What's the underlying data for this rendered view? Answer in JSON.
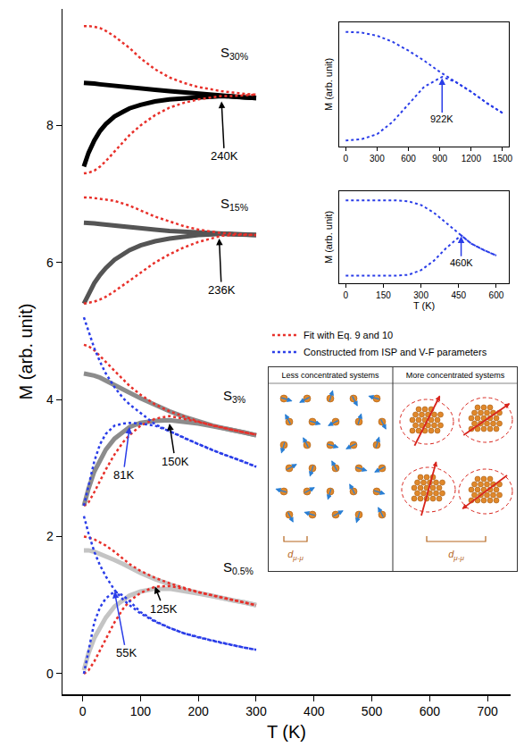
{
  "chart_data": [
    {
      "type": "line",
      "x_label": "T (K)",
      "y_label": "M (arb. unit)",
      "xlim": [
        -35,
        740
      ],
      "xticks": [
        0,
        100,
        200,
        300,
        400,
        500,
        600,
        700
      ],
      "ylim": [
        -0.3,
        9.7
      ],
      "yticks": [
        0,
        2,
        4,
        6,
        8
      ],
      "grid": false,
      "legend": "right",
      "x": [
        2,
        10,
        20,
        30,
        40,
        55,
        70,
        81,
        100,
        125,
        150,
        175,
        200,
        225,
        240,
        260,
        280,
        300
      ],
      "series": [
        {
          "color": "#000000",
          "line_style": "solid",
          "values": [
            8.62,
            8.62,
            8.61,
            8.6,
            8.59,
            8.58,
            8.57,
            8.56,
            8.54,
            8.52,
            8.5,
            8.48,
            8.46,
            8.44,
            8.43,
            8.42,
            8.41,
            8.4
          ]
        },
        {
          "color": "#000000",
          "line_style": "solid",
          "values": [
            7.4,
            7.6,
            7.78,
            7.92,
            8.02,
            8.13,
            8.2,
            8.25,
            8.3,
            8.35,
            8.38,
            8.4,
            8.41,
            8.42,
            8.43,
            8.42,
            8.41,
            8.4
          ]
        },
        {
          "color": "#555555",
          "line_style": "solid",
          "values": [
            6.58,
            6.58,
            6.57,
            6.56,
            6.55,
            6.54,
            6.53,
            6.52,
            6.5,
            6.48,
            6.46,
            6.45,
            6.44,
            6.43,
            6.42,
            6.41,
            6.41,
            6.4
          ]
        },
        {
          "color": "#555555",
          "line_style": "solid",
          "values": [
            5.4,
            5.55,
            5.7,
            5.82,
            5.92,
            6.04,
            6.13,
            6.18,
            6.25,
            6.31,
            6.35,
            6.38,
            6.4,
            6.41,
            6.42,
            6.41,
            6.41,
            6.4
          ]
        },
        {
          "color": "#8c8c8c",
          "line_style": "solid",
          "values": [
            4.38,
            4.37,
            4.35,
            4.32,
            4.28,
            4.22,
            4.16,
            4.1,
            4.02,
            3.92,
            3.83,
            3.75,
            3.68,
            3.62,
            3.59,
            3.55,
            3.52,
            3.48
          ]
        },
        {
          "color": "#8c8c8c",
          "line_style": "solid",
          "values": [
            2.45,
            2.7,
            2.95,
            3.12,
            3.27,
            3.43,
            3.53,
            3.6,
            3.66,
            3.69,
            3.7,
            3.68,
            3.65,
            3.61,
            3.59,
            3.55,
            3.52,
            3.48
          ]
        },
        {
          "color": "#c4c4c4",
          "line_style": "solid",
          "values": [
            1.8,
            1.8,
            1.78,
            1.75,
            1.72,
            1.66,
            1.6,
            1.55,
            1.47,
            1.38,
            1.3,
            1.23,
            1.18,
            1.13,
            1.1,
            1.07,
            1.04,
            1.0
          ]
        },
        {
          "color": "#c4c4c4",
          "line_style": "solid",
          "values": [
            0.05,
            0.3,
            0.52,
            0.68,
            0.82,
            0.98,
            1.08,
            1.14,
            1.2,
            1.24,
            1.24,
            1.21,
            1.17,
            1.13,
            1.1,
            1.07,
            1.04,
            1.0
          ]
        },
        {
          "name": "Fit with Eq. 9 and 10",
          "color": "#e8302a",
          "line_style": "dot",
          "values": [
            9.45,
            9.45,
            9.44,
            9.42,
            9.38,
            9.3,
            9.2,
            9.13,
            8.98,
            8.82,
            8.7,
            8.62,
            8.56,
            8.52,
            8.5,
            8.48,
            8.46,
            8.45
          ]
        },
        {
          "color": "#e8302a",
          "line_style": "dot",
          "values": [
            7.3,
            7.31,
            7.34,
            7.4,
            7.48,
            7.62,
            7.76,
            7.86,
            8.0,
            8.15,
            8.26,
            8.33,
            8.38,
            8.41,
            8.43,
            8.43,
            8.44,
            8.45
          ]
        },
        {
          "color": "#e8302a",
          "line_style": "dot",
          "values": [
            6.95,
            6.95,
            6.94,
            6.93,
            6.92,
            6.9,
            6.86,
            6.83,
            6.76,
            6.67,
            6.6,
            6.53,
            6.48,
            6.45,
            6.43,
            6.42,
            6.41,
            6.4
          ]
        },
        {
          "color": "#e8302a",
          "line_style": "dot",
          "values": [
            5.4,
            5.41,
            5.43,
            5.46,
            5.5,
            5.58,
            5.67,
            5.74,
            5.86,
            6.0,
            6.12,
            6.22,
            6.3,
            6.36,
            6.39,
            6.4,
            6.4,
            6.4
          ]
        },
        {
          "color": "#e8302a",
          "line_style": "dot",
          "values": [
            4.8,
            4.78,
            4.72,
            4.64,
            4.55,
            4.42,
            4.3,
            4.2,
            4.07,
            3.93,
            3.83,
            3.75,
            3.68,
            3.62,
            3.59,
            3.55,
            3.52,
            3.49
          ]
        },
        {
          "color": "#e8302a",
          "line_style": "dot",
          "values": [
            2.45,
            2.5,
            2.65,
            2.82,
            2.98,
            3.2,
            3.38,
            3.48,
            3.62,
            3.72,
            3.76,
            3.72,
            3.67,
            3.62,
            3.59,
            3.55,
            3.52,
            3.49
          ]
        },
        {
          "color": "#e8302a",
          "line_style": "dot",
          "values": [
            2.0,
            1.99,
            1.96,
            1.92,
            1.87,
            1.78,
            1.68,
            1.6,
            1.5,
            1.4,
            1.32,
            1.25,
            1.19,
            1.14,
            1.11,
            1.07,
            1.04,
            1.0
          ]
        },
        {
          "color": "#e8302a",
          "line_style": "dot",
          "values": [
            0.0,
            0.05,
            0.18,
            0.34,
            0.5,
            0.75,
            0.95,
            1.06,
            1.18,
            1.27,
            1.28,
            1.24,
            1.19,
            1.14,
            1.11,
            1.07,
            1.04,
            1.0
          ]
        },
        {
          "name": "Constructed from ISP and V-F parameters",
          "color": "#2a3de8",
          "line_style": "dot",
          "values": [
            5.2,
            5.0,
            4.75,
            4.55,
            4.38,
            4.18,
            4.02,
            3.93,
            3.8,
            3.64,
            3.54,
            3.44,
            3.35,
            3.26,
            3.21,
            3.15,
            3.09,
            3.02
          ]
        },
        {
          "color": "#2a3de8",
          "line_style": "dot",
          "values": [
            2.45,
            2.75,
            3.1,
            3.35,
            3.5,
            3.62,
            3.65,
            3.66,
            3.65,
            3.62,
            3.54,
            3.44,
            3.35,
            3.26,
            3.21,
            3.15,
            3.09,
            3.02
          ]
        },
        {
          "color": "#2a3de8",
          "line_style": "dot",
          "values": [
            2.3,
            2.05,
            1.78,
            1.58,
            1.42,
            1.22,
            1.08,
            1.0,
            0.88,
            0.76,
            0.67,
            0.59,
            0.53,
            0.48,
            0.45,
            0.42,
            0.38,
            0.35
          ]
        },
        {
          "color": "#2a3de8",
          "line_style": "dot",
          "values": [
            0.0,
            0.35,
            0.75,
            0.97,
            1.1,
            1.2,
            1.14,
            1.06,
            0.9,
            0.77,
            0.67,
            0.59,
            0.53,
            0.48,
            0.45,
            0.42,
            0.38,
            0.35
          ]
        }
      ],
      "labels": [
        {
          "text": "S30%",
          "x": 235,
          "y": 9.05
        },
        {
          "text": "S15%",
          "x": 235,
          "y": 6.85
        },
        {
          "text": "S3%",
          "x": 240,
          "y": 4.05
        },
        {
          "text": "S0.5%",
          "x": 240,
          "y": 1.55
        }
      ],
      "annotations": [
        {
          "text": "240K",
          "x": 240,
          "y": 8.35,
          "text_x": 245,
          "text_y": 7.55,
          "color": "#000000"
        },
        {
          "text": "236K",
          "x": 236,
          "y": 6.35,
          "text_x": 240,
          "text_y": 5.6,
          "color": "#000000"
        },
        {
          "text": "150K",
          "x": 150,
          "y": 3.65,
          "text_x": 160,
          "text_y": 3.1,
          "color": "#000000"
        },
        {
          "text": "81K",
          "x": 81,
          "y": 3.6,
          "text_x": 70,
          "text_y": 2.9,
          "color": "#2a3de8"
        },
        {
          "text": "125K",
          "x": 125,
          "y": 1.27,
          "text_x": 140,
          "text_y": 0.95,
          "color": "#000000"
        },
        {
          "text": "55K",
          "x": 55,
          "y": 1.2,
          "text_x": 75,
          "text_y": 0.3,
          "color": "#2a3de8"
        }
      ]
    },
    {
      "type": "line",
      "y_label": "M (arb. unit)",
      "xlim": [
        -60,
        1560
      ],
      "xticks": [
        0,
        300,
        600,
        900,
        1200,
        1500
      ],
      "ylim": [
        0,
        1
      ],
      "tick_labels": "x",
      "series": [
        {
          "color": "#2a3de8",
          "line_style": "dot",
          "x": [
            0,
            150,
            300,
            450,
            600,
            750,
            900,
            1050,
            1200,
            1350,
            1500
          ],
          "values": [
            0.92,
            0.915,
            0.89,
            0.84,
            0.77,
            0.69,
            0.6,
            0.52,
            0.44,
            0.35,
            0.27
          ]
        },
        {
          "color": "#2a3de8",
          "line_style": "dot",
          "x": [
            0,
            150,
            300,
            450,
            600,
            750,
            922,
            1050,
            1200,
            1350,
            1500
          ],
          "values": [
            0.05,
            0.06,
            0.1,
            0.2,
            0.34,
            0.48,
            0.56,
            0.52,
            0.44,
            0.35,
            0.27
          ]
        }
      ],
      "annotations": [
        {
          "text": "922K",
          "x": 922,
          "y": 0.55,
          "text_x": 922,
          "text_y": 0.22,
          "color": "#2a3de8"
        }
      ]
    },
    {
      "type": "line",
      "x_label": "T (K)",
      "y_label": "M (arb. unit)",
      "xlim": [
        -25,
        650
      ],
      "xticks": [
        0,
        150,
        300,
        450,
        600
      ],
      "ylim": [
        0,
        1
      ],
      "tick_labels": "x",
      "series": [
        {
          "color": "#2a3de8",
          "line_style": "dot",
          "x": [
            0,
            50,
            100,
            150,
            200,
            250,
            300,
            350,
            400,
            460,
            500,
            550,
            600
          ],
          "values": [
            0.9,
            0.9,
            0.9,
            0.9,
            0.9,
            0.89,
            0.85,
            0.77,
            0.66,
            0.52,
            0.43,
            0.36,
            0.3
          ]
        },
        {
          "color": "#2a3de8",
          "line_style": "dot",
          "x": [
            0,
            50,
            100,
            150,
            200,
            250,
            300,
            350,
            400,
            460,
            500,
            550,
            600
          ],
          "values": [
            0.08,
            0.08,
            0.08,
            0.08,
            0.08,
            0.09,
            0.14,
            0.24,
            0.38,
            0.52,
            0.43,
            0.36,
            0.3
          ]
        }
      ],
      "annotations": [
        {
          "text": "460K",
          "x": 460,
          "y": 0.51,
          "text_x": 460,
          "text_y": 0.22,
          "color": "#2a3de8"
        }
      ]
    }
  ],
  "diagram": {
    "panels": [
      {
        "title": "Less concentrated systems",
        "label": "dμ-μ"
      },
      {
        "title": "More concentrated systems",
        "label": "dμ-μ"
      }
    ]
  }
}
